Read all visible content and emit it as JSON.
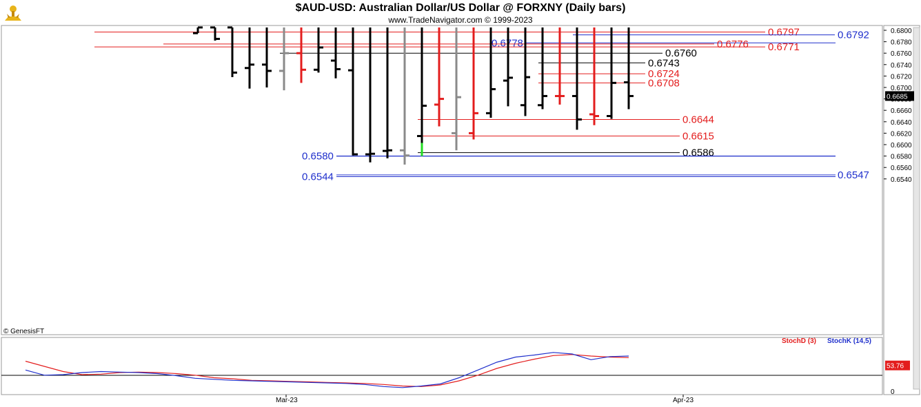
{
  "header": {
    "title": "$AUD-USD:  Australian Dollar/US Dollar @ FORXNY  (Daily bars)",
    "subtitle": "www.TradeNavigator.com © 1999-2023"
  },
  "footer": {
    "credit": "© GenesisFT"
  },
  "colors": {
    "red": "#e31d1d",
    "blue": "#1f2fcc",
    "black": "#000000",
    "gray": "#8a8a8a",
    "green": "#22dd22"
  },
  "chart_data": [
    {
      "type": "ohlc",
      "title": "$AUD-USD:  Australian Dollar/US Dollar @ FORXNY  (Daily bars)",
      "ylim": [
        0.653,
        0.6805
      ],
      "y_ticks": [
        "0.6800",
        "0.6780",
        "0.6760",
        "0.6740",
        "0.6720",
        "0.6700",
        "0.6680",
        "0.6660",
        "0.6640",
        "0.6620",
        "0.6600",
        "0.6580",
        "0.6560",
        "0.6540"
      ],
      "x_ticks": [
        "Mar-23",
        "Apr-23"
      ],
      "last_value": "0.6685",
      "bars": [
        {
          "o": 0.6795,
          "h": 0.6805,
          "l": 0.6795,
          "c": 0.6805,
          "color": "black"
        },
        {
          "o": 0.6805,
          "h": 0.6805,
          "l": 0.6782,
          "c": 0.6785,
          "color": "black"
        },
        {
          "o": 0.6805,
          "h": 0.6805,
          "l": 0.6718,
          "c": 0.6726,
          "color": "black"
        },
        {
          "o": 0.6734,
          "h": 0.6745,
          "l": 0.6698,
          "c": 0.674,
          "color": "black"
        },
        {
          "o": 0.674,
          "h": 0.6745,
          "l": 0.67,
          "c": 0.6729,
          "color": "black"
        },
        {
          "o": 0.6729,
          "h": 0.6785,
          "l": 0.6695,
          "c": 0.676,
          "color": "gray"
        },
        {
          "o": 0.676,
          "h": 0.6767,
          "l": 0.6708,
          "c": 0.6731,
          "color": "red"
        },
        {
          "o": 0.6731,
          "h": 0.6775,
          "l": 0.6726,
          "c": 0.677,
          "color": "black"
        },
        {
          "o": 0.6747,
          "h": 0.677,
          "l": 0.6716,
          "c": 0.6732,
          "color": "black"
        },
        {
          "o": 0.673,
          "h": 0.6748,
          "l": 0.6581,
          "c": 0.6583,
          "color": "black"
        },
        {
          "o": 0.6583,
          "h": 0.663,
          "l": 0.6569,
          "c": 0.6584,
          "color": "black"
        },
        {
          "o": 0.6589,
          "h": 0.6625,
          "l": 0.6576,
          "c": 0.659,
          "color": "black"
        },
        {
          "o": 0.659,
          "h": 0.6637,
          "l": 0.6565,
          "c": 0.6581,
          "color": "gray"
        },
        {
          "o": 0.6615,
          "h": 0.6717,
          "l": 0.6581,
          "c": 0.6668,
          "color": "black"
        },
        {
          "o": 0.667,
          "h": 0.6697,
          "l": 0.6632,
          "c": 0.668,
          "color": "red"
        },
        {
          "o": 0.662,
          "h": 0.6712,
          "l": 0.659,
          "c": 0.6683,
          "color": "gray"
        },
        {
          "o": 0.662,
          "h": 0.6668,
          "l": 0.6609,
          "c": 0.6655,
          "color": "red"
        },
        {
          "o": 0.6655,
          "h": 0.6725,
          "l": 0.6647,
          "c": 0.6697,
          "color": "black"
        },
        {
          "o": 0.6712,
          "h": 0.673,
          "l": 0.6667,
          "c": 0.6717,
          "color": "black"
        },
        {
          "o": 0.6669,
          "h": 0.6727,
          "l": 0.665,
          "c": 0.6718,
          "color": "black"
        },
        {
          "o": 0.6669,
          "h": 0.676,
          "l": 0.6662,
          "c": 0.6685,
          "color": "black"
        },
        {
          "o": 0.6685,
          "h": 0.6756,
          "l": 0.667,
          "c": 0.6685,
          "color": "red"
        },
        {
          "o": 0.6685,
          "h": 0.6695,
          "l": 0.6626,
          "c": 0.6644,
          "color": "black"
        },
        {
          "o": 0.6653,
          "h": 0.6667,
          "l": 0.6634,
          "c": 0.665,
          "color": "red"
        },
        {
          "o": 0.665,
          "h": 0.671,
          "l": 0.6645,
          "c": 0.6708,
          "color": "black"
        },
        {
          "o": 0.6709,
          "h": 0.6713,
          "l": 0.6662,
          "c": 0.6685,
          "color": "black"
        }
      ],
      "green_marker": {
        "bar": 13,
        "from": 0.658,
        "to": 0.6603
      },
      "levels": [
        {
          "value": 0.6797,
          "label": "0.6797",
          "color": "red",
          "start_bar": -6,
          "label_side": "right"
        },
        {
          "value": 0.6792,
          "label": "0.6792",
          "color": "blue",
          "start_bar": 22,
          "label_side": "far"
        },
        {
          "value": 0.6778,
          "label": "0.6778",
          "color": "blue",
          "start_bar": 21,
          "label_side": "left"
        },
        {
          "value": 0.6776,
          "label": "0.6776",
          "color": "red",
          "start_bar": -2,
          "label_side": "mid"
        },
        {
          "value": 0.6771,
          "label": "0.6771",
          "color": "red",
          "start_bar": -6,
          "label_side": "right"
        },
        {
          "value": 0.676,
          "label": "0.6760",
          "color": "black",
          "start_bar": 5,
          "label_side": "near"
        },
        {
          "value": 0.6743,
          "label": "0.6743",
          "color": "black",
          "start_bar": 20,
          "label_side": "near2"
        },
        {
          "value": 0.6724,
          "label": "0.6724",
          "color": "red",
          "start_bar": 20,
          "label_side": "near2"
        },
        {
          "value": 0.6708,
          "label": "0.6708",
          "color": "red",
          "start_bar": 20,
          "label_side": "near2"
        },
        {
          "value": 0.6644,
          "label": "0.6644",
          "color": "red",
          "start_bar": 13,
          "label_side": "near3"
        },
        {
          "value": 0.6615,
          "label": "0.6615",
          "color": "red",
          "start_bar": 13,
          "label_side": "near3"
        },
        {
          "value": 0.6586,
          "label": "0.6586",
          "color": "black",
          "start_bar": 13,
          "label_side": "near3"
        },
        {
          "value": 0.658,
          "label": "0.6580",
          "color": "blue",
          "start_bar": 9,
          "label_side": "left2"
        },
        {
          "value": 0.6547,
          "label": "0.6547",
          "color": "blue",
          "start_bar": 9,
          "label_side": "far"
        },
        {
          "value": 0.6544,
          "label": "0.6544",
          "color": "blue",
          "start_bar": 9,
          "label_side": "left2"
        }
      ]
    },
    {
      "type": "line",
      "title": "",
      "ylim": [
        0,
        100
      ],
      "y_ticks": [
        "0"
      ],
      "last_value": "53.76",
      "series": [
        {
          "name": "StochD (3)",
          "color": "red",
          "values": [
            62,
            52,
            42,
            36,
            37,
            40,
            41,
            40,
            38,
            35,
            30,
            28,
            25,
            24,
            23,
            22,
            21,
            20,
            19,
            17,
            14,
            13,
            16,
            24,
            35,
            48,
            58,
            66,
            73,
            75,
            72,
            70,
            69
          ]
        },
        {
          "name": "StochK (14,5)",
          "color": "blue",
          "values": [
            45,
            35,
            36,
            40,
            42,
            41,
            40,
            38,
            34,
            29,
            27,
            25,
            24,
            23,
            22,
            21,
            20,
            19,
            17,
            13,
            11,
            14,
            18,
            30,
            45,
            60,
            70,
            74,
            79,
            76,
            65,
            71,
            72
          ]
        }
      ]
    }
  ]
}
